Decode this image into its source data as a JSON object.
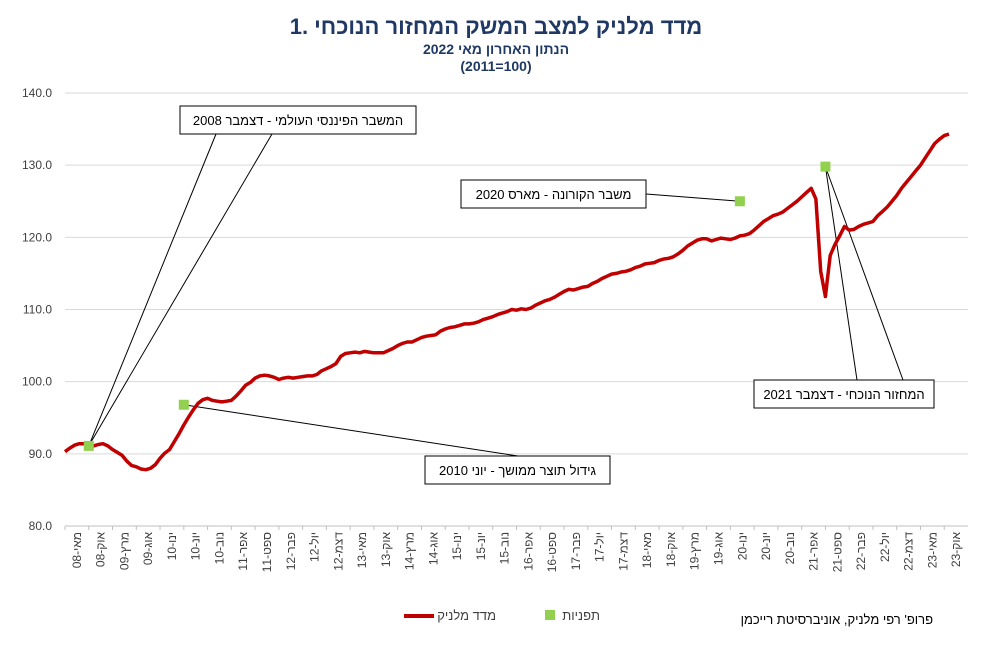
{
  "chart_data": {
    "type": "line",
    "title": "1. מדד מלניק למצב המשק המחזור הנוכחי",
    "subtitle": "הנתון האחרון מאי 2022",
    "subtitle2": "(2011=100)",
    "credit": "פרופ' רפי מלניק, אוניברסיטת רייכמן",
    "ylim": [
      80,
      140
    ],
    "y_ticks": [
      "80.0",
      "90.0",
      "100.0",
      "110.0",
      "120.0",
      "130.0",
      "140.0"
    ],
    "x_tick_labels": [
      "מאי-08",
      "אוק-08",
      "מרץ-09",
      "אוג-09",
      "ינו-10",
      "יונ-10",
      "נוב-10",
      "אפר-11",
      "ספט-11",
      "פבר-12",
      "יול-12",
      "דצמ-12",
      "מאי-13",
      "אוק-13",
      "מרץ-14",
      "אוג-14",
      "ינו-15",
      "יונ-15",
      "נוב-15",
      "אפר-16",
      "ספט-16",
      "פבר-17",
      "יול-17",
      "דצמ-17",
      "מאי-18",
      "אוק-18",
      "מרץ-19",
      "אוג-19",
      "ינו-20",
      "יונ-20",
      "נוב-20",
      "אפר-21",
      "ספט-21",
      "פבר-22",
      "יול-22",
      "דצמ-22",
      "מאי-23",
      "אוק-23"
    ],
    "series": [
      {
        "name": "מדד מלניק",
        "color": "#c00000",
        "start_month_index": 0,
        "values": [
          90.3,
          90.8,
          91.2,
          91.4,
          91.4,
          91.2,
          91.1,
          91.3,
          91.4,
          91.1,
          90.6,
          90.2,
          89.8,
          89.0,
          88.4,
          88.2,
          87.9,
          87.8,
          88.0,
          88.5,
          89.4,
          90.1,
          90.6,
          91.7,
          92.8,
          94.0,
          95.1,
          96.1,
          97.0,
          97.5,
          97.7,
          97.4,
          97.3,
          97.2,
          97.3,
          97.4,
          98.0,
          98.7,
          99.5,
          99.9,
          100.5,
          100.8,
          100.9,
          100.8,
          100.6,
          100.3,
          100.5,
          100.6,
          100.5,
          100.6,
          100.7,
          100.8,
          100.8,
          101.0,
          101.5,
          101.8,
          102.1,
          102.5,
          103.5,
          103.9,
          104.0,
          104.1,
          104.0,
          104.2,
          104.1,
          104.0,
          104.0,
          104.0,
          104.3,
          104.6,
          105.0,
          105.3,
          105.5,
          105.5,
          105.8,
          106.1,
          106.3,
          106.4,
          106.5,
          107.0,
          107.3,
          107.5,
          107.6,
          107.8,
          108.0,
          108.0,
          108.1,
          108.3,
          108.6,
          108.8,
          109.0,
          109.3,
          109.5,
          109.7,
          110.0,
          109.9,
          110.1,
          110.0,
          110.2,
          110.6,
          110.9,
          111.2,
          111.4,
          111.7,
          112.1,
          112.5,
          112.8,
          112.7,
          112.9,
          113.1,
          113.2,
          113.6,
          113.9,
          114.3,
          114.6,
          114.9,
          115.0,
          115.2,
          115.3,
          115.5,
          115.8,
          116.0,
          116.3,
          116.4,
          116.5,
          116.8,
          117.0,
          117.1,
          117.3,
          117.7,
          118.2,
          118.8,
          119.2,
          119.6,
          119.8,
          119.8,
          119.5,
          119.7,
          119.9,
          119.8,
          119.7,
          119.9,
          120.2,
          120.3,
          120.5,
          121.0,
          121.6,
          122.2,
          122.6,
          123.0,
          123.2,
          123.5,
          124.0,
          124.5,
          125.0,
          125.6,
          126.2,
          126.8,
          125.3,
          115.3,
          111.8,
          117.5,
          119.0,
          120.2,
          121.5,
          121.0,
          121.1,
          121.5,
          121.8,
          122.0,
          122.2,
          123.0,
          123.6,
          124.2,
          125.0,
          125.8,
          126.8,
          127.6,
          128.4,
          129.2,
          130.0,
          131.0,
          132.0,
          133.0,
          133.6,
          134.1,
          134.3
        ]
      },
      {
        "name": "תפניות",
        "color": "#92d050",
        "points": [
          {
            "month_index": 5,
            "value": 91.1
          },
          {
            "month_index": 25,
            "value": 96.8
          },
          {
            "month_index": 142,
            "value": 125.0
          },
          {
            "month_index": 160,
            "value": 129.8
          }
        ]
      }
    ],
    "annotations": [
      {
        "text": "המשבר הפיננסי העולמי - דצמבר 2008"
      },
      {
        "text": "משבר הקורונה - מארס 2020"
      },
      {
        "text": "גידול תוצר ממושך - יוני 2010"
      },
      {
        "text": "המחזור הנוכחי - דצמבר 2021"
      }
    ],
    "legend": {
      "position": "bottom"
    }
  }
}
